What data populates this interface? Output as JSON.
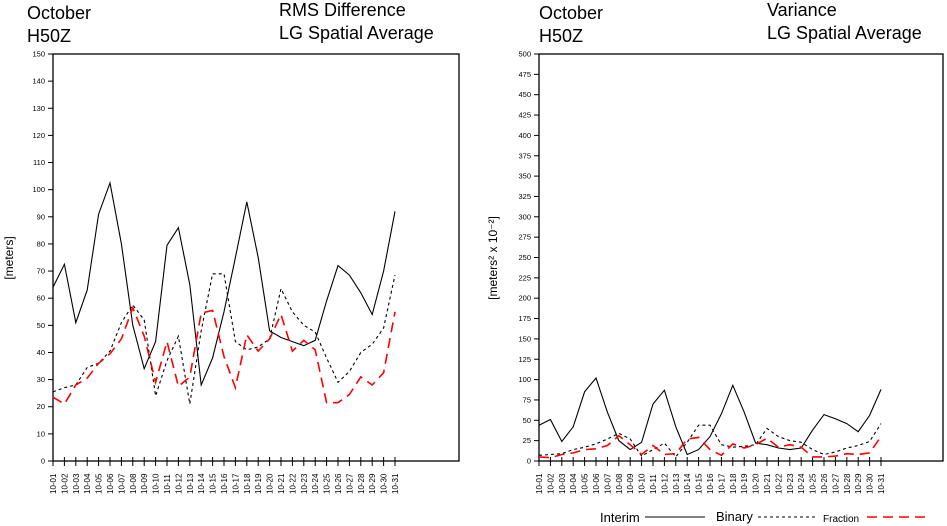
{
  "legend": {
    "items": [
      {
        "label": "Interim",
        "style": "solid",
        "color": "#000000"
      },
      {
        "label": "Binary",
        "style": "dotted",
        "color": "#000000"
      },
      {
        "label": "Fraction",
        "style": "dashed",
        "color": "#ff0000"
      }
    ]
  },
  "chart_data": [
    {
      "type": "line",
      "title_left": [
        "October",
        "H50Z"
      ],
      "title_right": [
        "RMS Difference",
        "LG Spatial Average"
      ],
      "xlabel": "",
      "ylabel": "[meters]",
      "ylim": [
        0,
        150
      ],
      "yticks": [
        0,
        10,
        20,
        30,
        40,
        50,
        60,
        70,
        80,
        90,
        100,
        110,
        120,
        130,
        140,
        150
      ],
      "grid": false,
      "categories": [
        "10-01",
        "10-02",
        "10-03",
        "10-04",
        "10-05",
        "10-06",
        "10-07",
        "10-08",
        "10-09",
        "10-10",
        "10-11",
        "10-12",
        "10-13",
        "10-14",
        "10-15",
        "10-16",
        "10-17",
        "10-18",
        "10-19",
        "10-20",
        "10-21",
        "10-22",
        "10-23",
        "10-24",
        "10-25",
        "10-26",
        "10-27",
        "10-28",
        "10-29",
        "10-30",
        "10-31"
      ],
      "series": [
        {
          "name": "Interim",
          "values": [
            64,
            72.5,
            51,
            63,
            91,
            102.5,
            80,
            50,
            34,
            44,
            79.5,
            86,
            65,
            28,
            38,
            55,
            75,
            95.5,
            75,
            48,
            45.5,
            44,
            42.5,
            44.5,
            59,
            72,
            68.5,
            62,
            54,
            70,
            92
          ]
        },
        {
          "name": "Binary",
          "values": [
            25.5,
            27,
            28,
            34.5,
            36,
            40.5,
            51,
            57.5,
            52,
            24,
            37,
            46,
            21,
            48,
            69,
            69,
            44,
            41,
            42,
            45,
            63.5,
            55,
            50,
            47.5,
            38,
            29,
            33,
            40,
            43,
            49,
            68.5
          ]
        },
        {
          "name": "Fraction",
          "values": [
            23.5,
            21,
            28,
            30.5,
            36,
            39.5,
            45,
            56.5,
            46,
            29,
            44,
            27.5,
            31,
            54.5,
            55.5,
            38.5,
            27,
            46.5,
            40.5,
            45,
            54,
            40.5,
            44.5,
            41,
            21.5,
            21.5,
            24.5,
            31,
            28,
            32.5,
            55
          ]
        }
      ]
    },
    {
      "type": "line",
      "title_left": [
        "October",
        "H50Z"
      ],
      "title_right": [
        "Variance",
        "LG Spatial Average"
      ],
      "xlabel": "",
      "ylabel": "[meters² x 10⁻²]",
      "ylim": [
        0,
        500
      ],
      "yticks": [
        0,
        25,
        50,
        75,
        100,
        125,
        150,
        175,
        200,
        225,
        250,
        275,
        300,
        325,
        350,
        375,
        400,
        425,
        450,
        475,
        500
      ],
      "grid": false,
      "categories": [
        "10-01",
        "10-02",
        "10-03",
        "10-04",
        "10-05",
        "10-06",
        "10-07",
        "10-08",
        "10-09",
        "10-10",
        "10-11",
        "10-12",
        "10-13",
        "10-14",
        "10-15",
        "10-16",
        "10-17",
        "10-18",
        "10-19",
        "10-20",
        "10-21",
        "10-22",
        "10-23",
        "10-24",
        "10-25",
        "10-26",
        "10-27",
        "10-28",
        "10-29",
        "10-30",
        "10-31"
      ],
      "series": [
        {
          "name": "Interim",
          "values": [
            44,
            51,
            24,
            42,
            85,
            102,
            60,
            25,
            14,
            23,
            70,
            87,
            42,
            8,
            14,
            30,
            58,
            93,
            60,
            22,
            20,
            16,
            14,
            16,
            38,
            57,
            52,
            46,
            36,
            56,
            88
          ]
        },
        {
          "name": "Binary",
          "values": [
            7,
            8,
            9,
            14,
            17,
            21,
            27,
            34,
            27,
            6,
            14,
            22,
            5,
            23,
            44,
            44,
            20,
            17,
            18,
            20,
            40,
            30,
            25,
            23,
            14,
            8,
            11,
            16,
            19,
            24,
            46
          ]
        },
        {
          "name": "Fraction",
          "values": [
            5,
            4,
            8,
            10,
            14,
            15,
            19,
            31,
            20,
            8,
            19,
            8,
            9,
            27,
            29,
            14,
            7,
            21,
            16,
            20,
            28,
            17,
            20,
            17,
            5,
            5,
            6,
            9,
            8,
            10,
            30
          ]
        }
      ]
    }
  ]
}
